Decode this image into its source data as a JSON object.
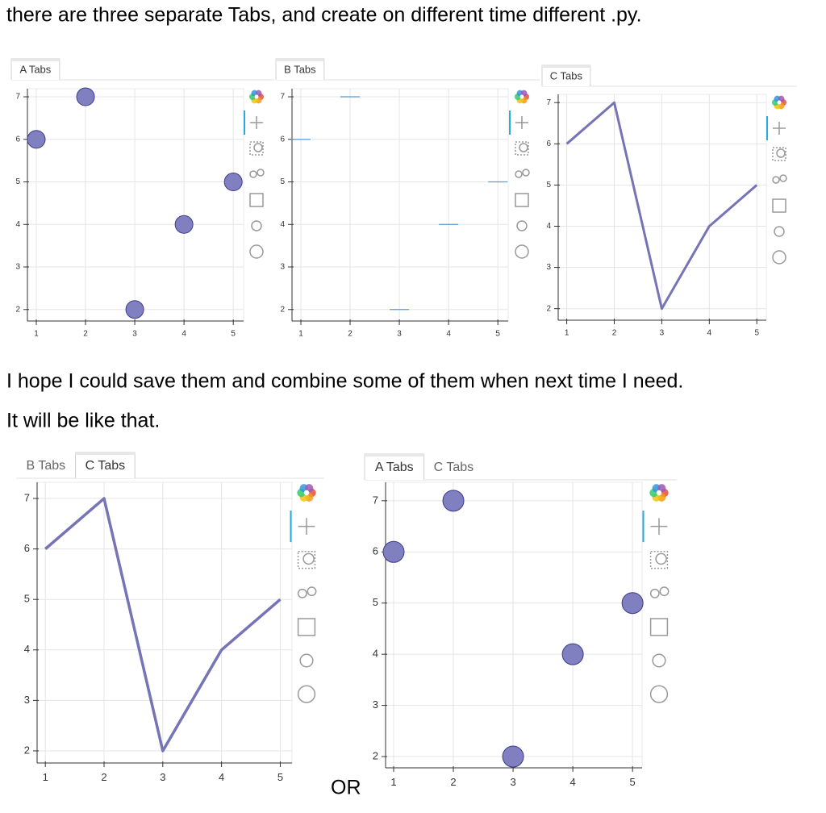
{
  "document": {
    "lines": [
      "there are three separate Tabs, and create on different time different .py.",
      "I hope I could save them and combine some of them when next time I need.",
      "It will be like that."
    ],
    "separator": "OR"
  },
  "chart_data": [
    {
      "type": "scatter",
      "tabs": [
        "A Tabs"
      ],
      "active_tab": 0,
      "x": [
        1,
        2,
        3,
        4,
        5
      ],
      "values": [
        6,
        7,
        2,
        4,
        5
      ],
      "color": "#8080c0",
      "xlim": [
        0.82,
        5.21
      ],
      "ylim": [
        1.73,
        7.19
      ],
      "xticks": [
        1,
        2,
        3,
        4,
        5
      ],
      "yticks": [
        2,
        3,
        4,
        5,
        6,
        7
      ],
      "grid": true
    },
    {
      "type": "dash",
      "tabs": [
        "B Tabs"
      ],
      "active_tab": 0,
      "x": [
        1,
        2,
        3,
        4,
        5
      ],
      "values": [
        6,
        7,
        2,
        4,
        5
      ],
      "color": "#5b9bd5",
      "xlim": [
        0.82,
        5.21
      ],
      "ylim": [
        1.73,
        7.19
      ],
      "xticks": [
        1,
        2,
        3,
        4,
        5
      ],
      "yticks": [
        2,
        3,
        4,
        5,
        6,
        7
      ],
      "grid": true
    },
    {
      "type": "line",
      "tabs": [
        "C Tabs"
      ],
      "active_tab": 0,
      "x": [
        1,
        2,
        3,
        4,
        5
      ],
      "values": [
        6,
        7,
        2,
        4,
        5
      ],
      "color": "#7474b6",
      "xlim": [
        0.82,
        5.2
      ],
      "ylim": [
        1.72,
        7.2
      ],
      "xticks": [
        1,
        2,
        3,
        4,
        5
      ],
      "yticks": [
        2,
        3,
        4,
        5,
        6,
        7
      ],
      "grid": true
    },
    {
      "type": "line",
      "tabs": [
        "B Tabs",
        "C Tabs"
      ],
      "active_tab": 1,
      "x": [
        1,
        2,
        3,
        4,
        5
      ],
      "values": [
        6,
        7,
        2,
        4,
        5
      ],
      "color": "#7474b6",
      "xlim": [
        0.86,
        5.2
      ],
      "ylim": [
        1.76,
        7.32
      ],
      "xticks": [
        1,
        2,
        3,
        4,
        5
      ],
      "yticks": [
        2,
        3,
        4,
        5,
        6,
        7
      ],
      "grid": true
    },
    {
      "type": "scatter",
      "tabs": [
        "A Tabs",
        "C Tabs"
      ],
      "active_tab": 0,
      "x": [
        1,
        2,
        3,
        4,
        5
      ],
      "values": [
        6,
        7,
        2,
        4,
        5
      ],
      "color": "#8080c0",
      "xlim": [
        0.865,
        5.16
      ],
      "ylim": [
        1.78,
        7.36
      ],
      "xticks": [
        1,
        2,
        3,
        4,
        5
      ],
      "yticks": [
        2,
        3,
        4,
        5,
        6,
        7
      ],
      "grid": true
    }
  ]
}
